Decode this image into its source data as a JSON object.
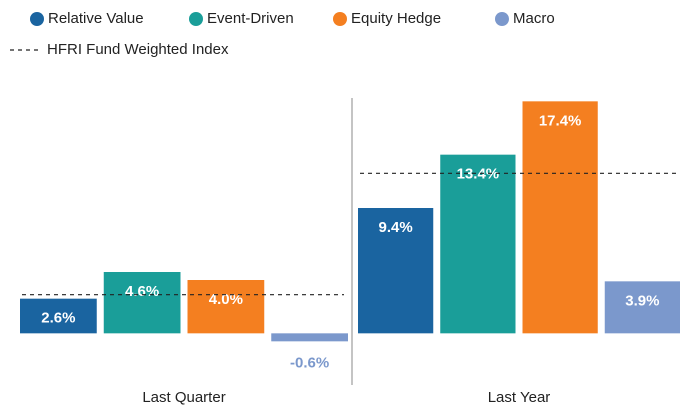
{
  "chart_data": {
    "type": "bar",
    "categories": [
      "Last Quarter",
      "Last Year"
    ],
    "series": [
      {
        "name": "Relative Value",
        "color": "#1a64a0",
        "values": [
          2.6,
          9.4
        ],
        "value_labels": [
          "2.6%",
          "9.4%"
        ]
      },
      {
        "name": "Event-Driven",
        "color": "#1a9e99",
        "values": [
          4.6,
          13.4
        ],
        "value_labels": [
          "4.6%",
          "13.4%"
        ]
      },
      {
        "name": "Equity Hedge",
        "color": "#f47f20",
        "values": [
          4.0,
          17.4
        ],
        "value_labels": [
          "4.0%",
          "17.4%"
        ]
      },
      {
        "name": "Macro",
        "color": "#7b98cc",
        "values": [
          -0.6,
          3.9
        ],
        "value_labels": [
          "-0.6%",
          "3.9%"
        ]
      }
    ],
    "reference": {
      "name": "HFRI Fund Weighted Index",
      "color": "#222222",
      "values": [
        2.9,
        12.0
      ]
    },
    "ylim": [
      -2,
      19
    ],
    "legend": "top-left"
  }
}
